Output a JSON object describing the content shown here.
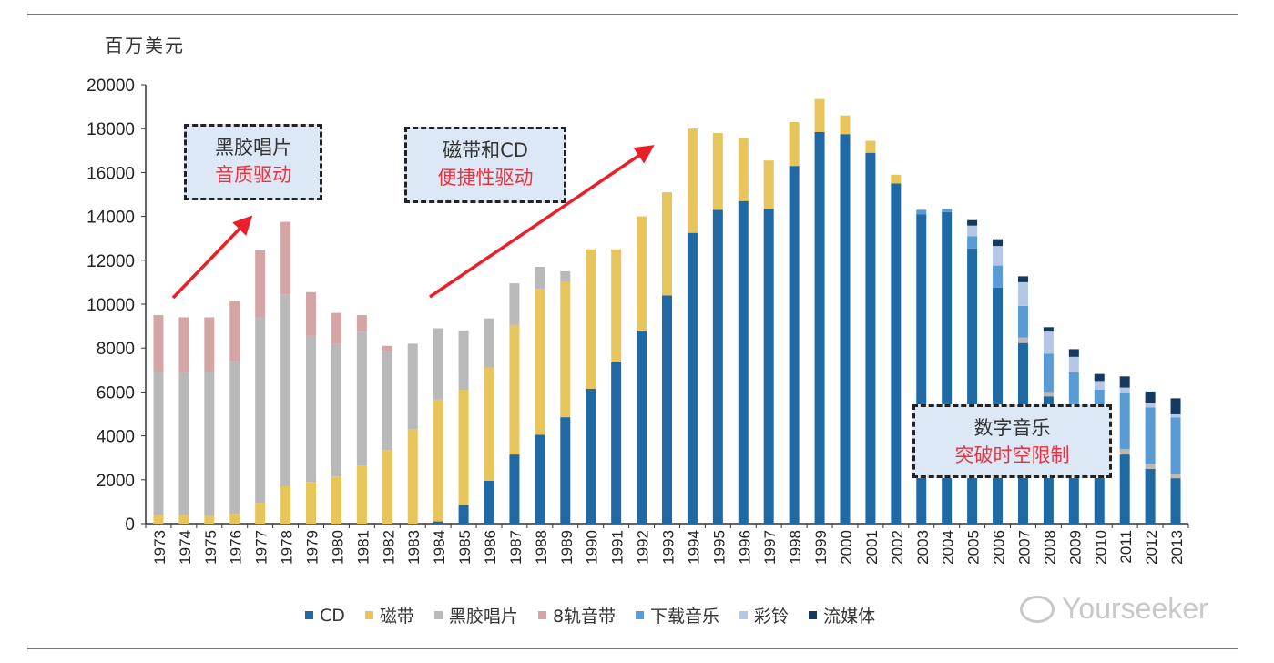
{
  "chart_data": {
    "type": "bar",
    "stacked": true,
    "title": "",
    "ylabel": "百万美元",
    "xlabel": "",
    "ylim": [
      0,
      20000
    ],
    "yticks": [
      0,
      2000,
      4000,
      6000,
      8000,
      10000,
      12000,
      14000,
      16000,
      18000,
      20000
    ],
    "grid": false,
    "legend_position": "bottom",
    "categories": [
      "1973",
      "1974",
      "1975",
      "1976",
      "1977",
      "1978",
      "1979",
      "1980",
      "1981",
      "1982",
      "1983",
      "1984",
      "1985",
      "1986",
      "1987",
      "1988",
      "1989",
      "1990",
      "1991",
      "1992",
      "1993",
      "1994",
      "1995",
      "1996",
      "1997",
      "1998",
      "1999",
      "2000",
      "2001",
      "2002",
      "2003",
      "2004",
      "2005",
      "2006",
      "2007",
      "2008",
      "2009",
      "2010",
      "2011",
      "2012",
      "2013"
    ],
    "series": [
      {
        "name": "CD",
        "color": "#1f6aa5",
        "values": [
          0,
          0,
          0,
          0,
          0,
          0,
          0,
          0,
          0,
          0,
          0,
          100,
          850,
          1950,
          3150,
          4050,
          4850,
          6150,
          7350,
          8800,
          10400,
          13250,
          14300,
          14700,
          14350,
          16300,
          17850,
          17750,
          16900,
          15500,
          14100,
          14200,
          12540,
          10750,
          8230,
          5800,
          4300,
          3400,
          3150,
          2490,
          2070
        ]
      },
      {
        "name": "磁带",
        "color": "#e8c55a",
        "values": [
          400,
          400,
          350,
          450,
          950,
          1700,
          1900,
          2150,
          2650,
          3350,
          4300,
          5550,
          5250,
          5150,
          5900,
          6650,
          6150,
          6350,
          5150,
          5200,
          4700,
          4750,
          3500,
          2850,
          2200,
          2000,
          1500,
          850,
          550,
          400,
          0,
          0,
          0,
          0,
          0,
          0,
          0,
          0,
          0,
          0,
          0
        ]
      },
      {
        "name": "黑胶唱片",
        "color": "#b9b9b9",
        "values": [
          6550,
          6500,
          6600,
          6950,
          8450,
          8750,
          6650,
          6050,
          6100,
          4500,
          3900,
          3250,
          2700,
          2250,
          1900,
          1000,
          500,
          0,
          0,
          0,
          0,
          0,
          0,
          0,
          0,
          0,
          0,
          0,
          0,
          0,
          0,
          0,
          0,
          0,
          250,
          200,
          200,
          200,
          240,
          230,
          210
        ]
      },
      {
        "name": "8轨音带",
        "color": "#d4a5a5",
        "values": [
          2550,
          2500,
          2450,
          2750,
          3050,
          3300,
          2000,
          1400,
          750,
          250,
          0,
          0,
          0,
          0,
          0,
          0,
          0,
          0,
          0,
          0,
          0,
          0,
          0,
          0,
          0,
          0,
          0,
          0,
          0,
          0,
          0,
          0,
          0,
          0,
          0,
          0,
          0,
          0,
          0,
          0,
          0
        ]
      },
      {
        "name": "下载音乐",
        "color": "#5b9bd5",
        "values": [
          0,
          0,
          0,
          0,
          0,
          0,
          0,
          0,
          0,
          0,
          0,
          0,
          0,
          0,
          0,
          0,
          0,
          0,
          0,
          0,
          0,
          0,
          0,
          0,
          0,
          0,
          0,
          0,
          0,
          0,
          200,
          150,
          560,
          1010,
          1440,
          1750,
          2400,
          2500,
          2560,
          2580,
          2560
        ]
      },
      {
        "name": "彩铃",
        "color": "#b4c7e7",
        "values": [
          0,
          0,
          0,
          0,
          0,
          0,
          0,
          0,
          0,
          0,
          0,
          0,
          0,
          0,
          0,
          0,
          0,
          0,
          0,
          0,
          0,
          0,
          0,
          0,
          0,
          0,
          0,
          0,
          0,
          0,
          0,
          0,
          480,
          890,
          1080,
          1000,
          700,
          400,
          250,
          190,
          140
        ]
      },
      {
        "name": "流媒体",
        "color": "#163a5f",
        "values": [
          0,
          0,
          0,
          0,
          0,
          0,
          0,
          0,
          0,
          0,
          0,
          0,
          0,
          0,
          0,
          0,
          0,
          0,
          0,
          0,
          0,
          0,
          0,
          0,
          0,
          0,
          0,
          0,
          0,
          0,
          0,
          0,
          250,
          310,
          270,
          200,
          350,
          320,
          510,
          530,
          730
        ]
      }
    ],
    "annotations": [
      {
        "line1": "黑胶唱片",
        "line2": "音质驱动"
      },
      {
        "line1": "磁带和CD",
        "line2": "便捷性驱动"
      },
      {
        "line1": "数字音乐",
        "line2": "突破时空限制"
      }
    ],
    "arrow_color": "#e8202a"
  },
  "watermark": "Yourseeker"
}
